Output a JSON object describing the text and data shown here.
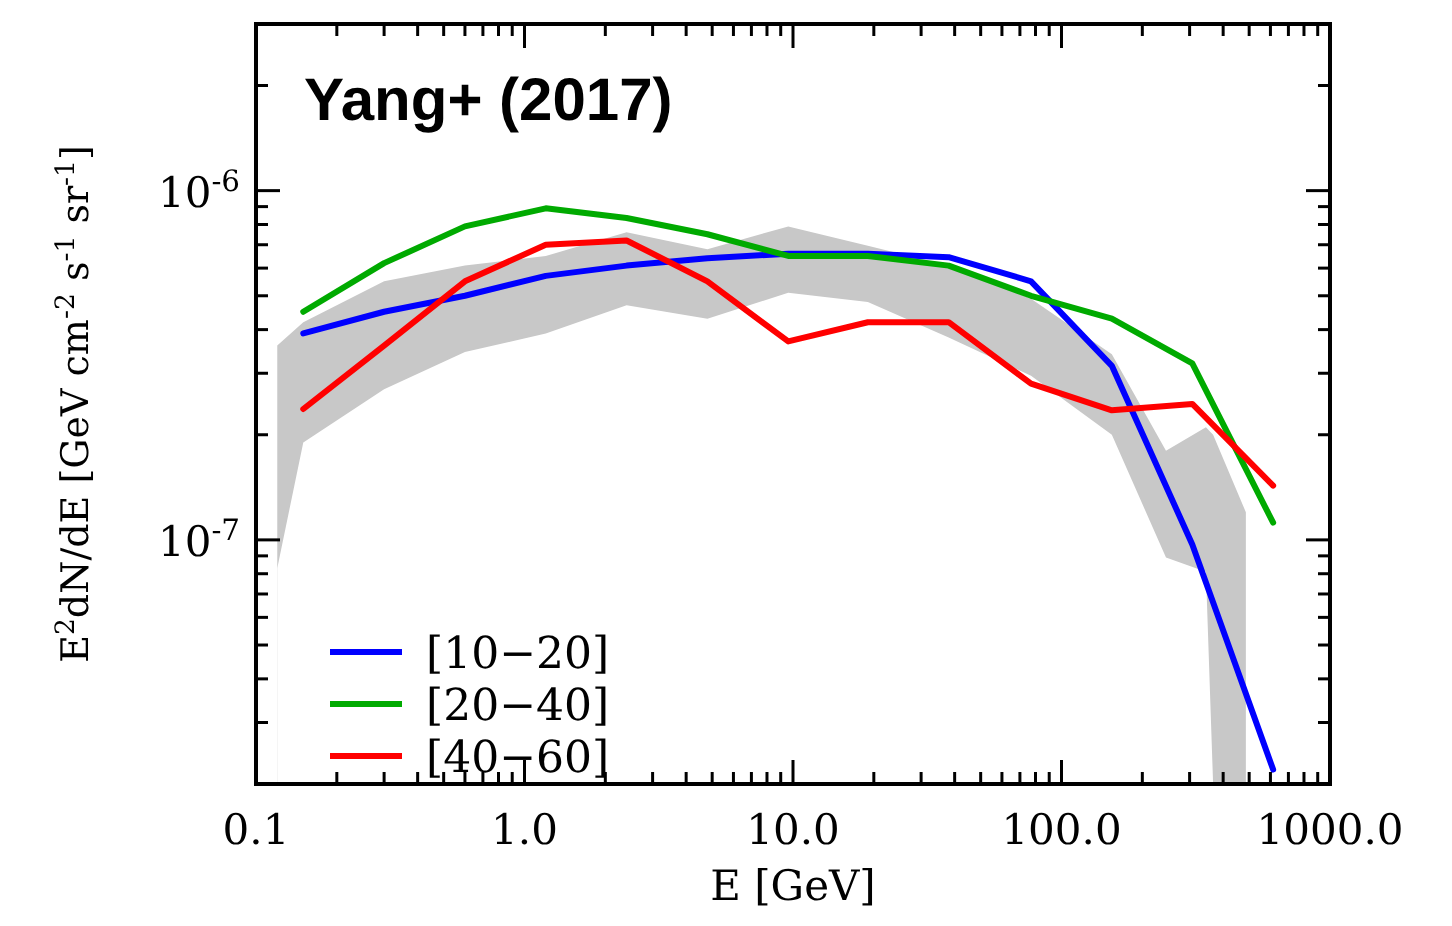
{
  "chart_data": {
    "type": "line",
    "title": "Yang+ (2017)",
    "xlabel": "E [GeV]",
    "ylabel": "E$^{2}$dN/dE [GeV cm$^{-2}$ s$^{-1}$ sr$^{-1}$]",
    "log": "xy",
    "xlim": [
      0.1,
      1000
    ],
    "ylim": [
      2e-08,
      3e-06
    ],
    "xticks": [
      {
        "value": 0.1,
        "label": "0.1"
      },
      {
        "value": 0.2,
        "label": null
      },
      {
        "value": 0.3,
        "label": null
      },
      {
        "value": 0.4,
        "label": null
      },
      {
        "value": 0.5,
        "label": null
      },
      {
        "value": 0.6,
        "label": null
      },
      {
        "value": 0.7,
        "label": null
      },
      {
        "value": 0.8,
        "label": null
      },
      {
        "value": 0.9,
        "label": null
      },
      {
        "value": 1,
        "label": "1.0"
      },
      {
        "value": 2,
        "label": null
      },
      {
        "value": 3,
        "label": null
      },
      {
        "value": 4,
        "label": null
      },
      {
        "value": 5,
        "label": null
      },
      {
        "value": 6,
        "label": null
      },
      {
        "value": 7,
        "label": null
      },
      {
        "value": 8,
        "label": null
      },
      {
        "value": 9,
        "label": null
      },
      {
        "value": 10,
        "label": "10.0"
      },
      {
        "value": 20,
        "label": null
      },
      {
        "value": 30,
        "label": null
      },
      {
        "value": 40,
        "label": null
      },
      {
        "value": 50,
        "label": null
      },
      {
        "value": 60,
        "label": null
      },
      {
        "value": 70,
        "label": null
      },
      {
        "value": 80,
        "label": null
      },
      {
        "value": 90,
        "label": null
      },
      {
        "value": 100,
        "label": "100.0"
      },
      {
        "value": 200,
        "label": null
      },
      {
        "value": 300,
        "label": null
      },
      {
        "value": 400,
        "label": null
      },
      {
        "value": 500,
        "label": null
      },
      {
        "value": 600,
        "label": null
      },
      {
        "value": 700,
        "label": null
      },
      {
        "value": 800,
        "label": null
      },
      {
        "value": 900,
        "label": null
      },
      {
        "value": 1000,
        "label": "1000.0"
      }
    ],
    "yticks": [
      {
        "value": 2e-08,
        "label": null
      },
      {
        "value": 3e-08,
        "label": null
      },
      {
        "value": 4e-08,
        "label": null
      },
      {
        "value": 5e-08,
        "label": null
      },
      {
        "value": 6e-08,
        "label": null
      },
      {
        "value": 7e-08,
        "label": null
      },
      {
        "value": 8e-08,
        "label": null
      },
      {
        "value": 9e-08,
        "label": null
      },
      {
        "value": 1e-07,
        "label": "10$^{-7}$"
      },
      {
        "value": 2e-07,
        "label": null
      },
      {
        "value": 3e-07,
        "label": null
      },
      {
        "value": 4e-07,
        "label": null
      },
      {
        "value": 5e-07,
        "label": null
      },
      {
        "value": 6e-07,
        "label": null
      },
      {
        "value": 7e-07,
        "label": null
      },
      {
        "value": 8e-07,
        "label": null
      },
      {
        "value": 9e-07,
        "label": null
      },
      {
        "value": 1e-06,
        "label": "10$^{-6}$"
      },
      {
        "value": 2e-06,
        "label": null
      },
      {
        "value": 3e-06,
        "label": null
      }
    ],
    "legend": "bottom left",
    "x": [
      0.15,
      0.3,
      0.6,
      1.2,
      2.4,
      4.8,
      9.6,
      19,
      38,
      77,
      154,
      307,
      614
    ],
    "series": [
      {
        "type": "area",
        "color": "#c8c8c8",
        "x": [
          0.12,
          0.15,
          0.3,
          0.6,
          1.2,
          2.4,
          4.8,
          9.6,
          19,
          38,
          77,
          154,
          245,
          345,
          367,
          486
        ],
        "values": [
          3.6e-07,
          4.2e-07,
          5.5e-07,
          6.1e-07,
          6.5e-07,
          7.6e-07,
          6.8e-07,
          7.9e-07,
          6.95e-07,
          6.1e-07,
          4.9e-07,
          3.4e-07,
          1.8e-07,
          2.1e-07,
          2e-07,
          1.2e-07
        ]
      },
      {
        "type": "area",
        "color": "#ffffff",
        "x": [
          0.12,
          0.15,
          0.3,
          0.6,
          1.2,
          2.4,
          4.8,
          9.6,
          19,
          38,
          77,
          154,
          245,
          345,
          367,
          486
        ],
        "values": [
          8.3e-08,
          1.9e-07,
          2.7e-07,
          3.45e-07,
          3.9e-07,
          4.7e-07,
          4.3e-07,
          5.1e-07,
          4.8e-07,
          3.8e-07,
          2.95e-07,
          2e-07,
          8.9e-08,
          8.1e-08,
          2e-08,
          2e-08
        ]
      },
      {
        "name": "[10−20]",
        "color": "#0000ff",
        "values": [
          3.9e-07,
          4.5e-07,
          5e-07,
          5.7e-07,
          6.1e-07,
          6.4e-07,
          6.6e-07,
          6.6e-07,
          6.45e-07,
          5.5e-07,
          3.15e-07,
          9.7e-08,
          2.2e-08
        ]
      },
      {
        "name": "[20−40]",
        "color": "#00aa00",
        "values": [
          4.5e-07,
          6.2e-07,
          7.9e-07,
          8.9e-07,
          8.35e-07,
          7.5e-07,
          6.5e-07,
          6.5e-07,
          6.1e-07,
          5e-07,
          4.3e-07,
          3.2e-07,
          1.12e-07
        ]
      },
      {
        "name": "[40−60]",
        "color": "#ff0000",
        "values": [
          2.37e-07,
          3.6e-07,
          5.5e-07,
          7e-07,
          7.2e-07,
          5.5e-07,
          3.7e-07,
          4.2e-07,
          4.2e-07,
          2.8e-07,
          2.35e-07,
          2.45e-07,
          1.43e-07
        ]
      }
    ]
  }
}
